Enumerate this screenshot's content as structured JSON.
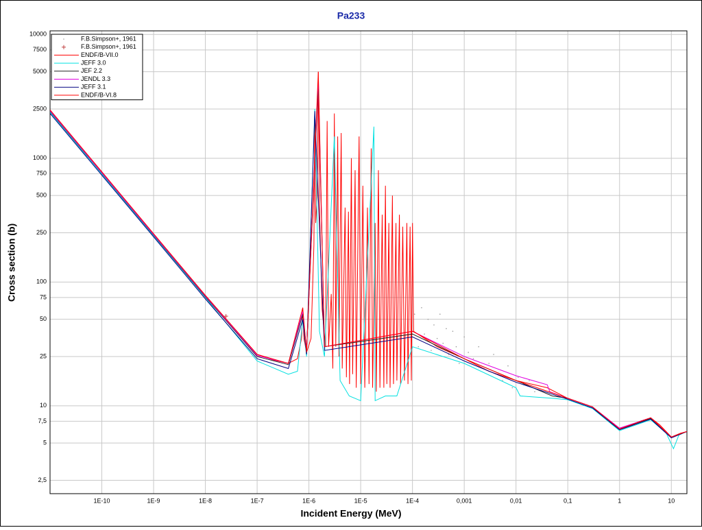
{
  "chart_data": {
    "type": "line",
    "title": "Pa233",
    "xlabel": "Incident Energy (MeV)",
    "ylabel": "Cross section (b)",
    "log_x": true,
    "log_y": true,
    "grid": true,
    "legend": "upper left",
    "xlim": [
      1e-11,
      20
    ],
    "ylim": [
      1.95,
      10700
    ],
    "xticks": [
      {
        "value": 1e-10,
        "label": "1E-10"
      },
      {
        "value": 1e-09,
        "label": "1E-9"
      },
      {
        "value": 1e-08,
        "label": "1E-8"
      },
      {
        "value": 1e-07,
        "label": "1E-7"
      },
      {
        "value": 1e-06,
        "label": "1E-6"
      },
      {
        "value": 1e-05,
        "label": "1E-5"
      },
      {
        "value": 0.0001,
        "label": "1E-4"
      },
      {
        "value": 0.001,
        "label": "0,001"
      },
      {
        "value": 0.01,
        "label": "0,01"
      },
      {
        "value": 0.1,
        "label": "0,1"
      },
      1,
      10
    ],
    "yticks": [
      {
        "value": 2.5,
        "label": "2,5"
      },
      5,
      {
        "value": 7.5,
        "label": "7,5"
      },
      10,
      25,
      50,
      75,
      100,
      250,
      500,
      750,
      1000,
      2500,
      5000,
      7500,
      10000
    ],
    "series": [
      {
        "name": "F.B.Simpson+, 1961",
        "marker": "dot",
        "color": "#9a9a9a",
        "x": [
          0.00011,
          0.00013,
          0.00015,
          0.00017,
          0.0002,
          0.00023,
          0.00026,
          0.0003,
          0.00034,
          0.00039,
          0.00045,
          0.0005,
          0.0006,
          0.0007,
          0.0008,
          0.001,
          0.0012,
          0.0015,
          0.0019,
          0.0024,
          0.003,
          0.0037,
          0.0045,
          0.0055,
          0.007,
          0.0085,
          0.011,
          0.014,
          0.018,
          0.023
        ],
        "values": [
          55,
          30,
          62,
          38,
          50,
          28,
          45,
          35,
          55,
          32,
          42,
          26,
          40,
          30,
          22,
          36,
          27,
          24,
          30,
          20,
          22,
          26,
          18,
          16,
          21,
          14,
          17,
          15,
          16,
          13
        ]
      },
      {
        "name": "F.B.Simpson+, 1961",
        "marker": "plus",
        "color": "#c04040",
        "x": [
          2.5e-08
        ],
        "values": [
          53
        ]
      },
      {
        "name": "ENDF/B-VII.0",
        "color": "#ff0000",
        "x": [
          1e-11,
          1e-10,
          1e-09,
          1e-08,
          1e-07,
          2e-07,
          4e-07,
          6e-07,
          7.2e-07,
          7.6e-07,
          8e-07,
          9e-07,
          1.1e-06,
          1.25e-06,
          1.3e-06,
          1.35e-06,
          1.45e-06,
          1.52e-06,
          1.6e-06,
          1.8e-06,
          2.1e-06,
          2.25e-06,
          2.4e-06,
          2.7e-06,
          2.9e-06,
          3.1e-06,
          3.3e-06,
          3.6e-06,
          3.8e-06,
          4.2e-06,
          4.4e-06,
          5e-06,
          5.3e-06,
          5.8e-06,
          6.1e-06,
          6.6e-06,
          7e-06,
          7.8e-06,
          8.2e-06,
          9.3e-06,
          1e-05,
          1.1e-05,
          1.2e-05,
          1.35e-05,
          1.45e-05,
          1.6e-05,
          1.7e-05,
          1.9e-05,
          2e-05,
          2.2e-05,
          2.35e-05,
          2.6e-05,
          2.8e-05,
          3e-05,
          3.2e-05,
          3.5e-05,
          3.7e-05,
          4.1e-05,
          4.3e-05,
          4.8e-05,
          5e-05,
          5.6e-05,
          5.9e-05,
          6.5e-05,
          7e-05,
          7.8e-05,
          8.2e-05,
          9e-05,
          9.5e-05,
          0.0001,
          0.000105,
          0.0003,
          0.001,
          0.003,
          0.01,
          0.04,
          0.1,
          0.3,
          0.6,
          1,
          1.5,
          2.5,
          4,
          6,
          10,
          15,
          20
        ],
        "values": [
          2450,
          775,
          245,
          78,
          26,
          23.5,
          22,
          24,
          35,
          62,
          35,
          27,
          35,
          200,
          2300,
          300,
          500,
          5000,
          400,
          60,
          30,
          2000,
          30,
          80,
          20,
          2300,
          30,
          1500,
          25,
          1600,
          20,
          400,
          17,
          370,
          15,
          1000,
          18,
          800,
          14,
          1500,
          15,
          600,
          14,
          400,
          15,
          1200,
          14,
          300,
          13,
          800,
          14,
          350,
          14,
          600,
          15,
          300,
          14,
          500,
          15,
          300,
          16,
          350,
          15,
          280,
          16,
          300,
          15,
          280,
          16,
          300,
          40,
          30,
          24,
          19,
          16,
          14,
          11.5,
          9.8,
          7.5,
          6.5,
          6.8,
          7.5,
          8,
          7,
          5.6,
          6,
          6.2
        ]
      },
      {
        "name": "JEFF 3.0",
        "color": "#00e0e0",
        "x": [
          1e-11,
          1e-10,
          1e-09,
          1e-08,
          1e-07,
          4e-07,
          6e-07,
          7.6e-07,
          9e-07,
          1.3e-06,
          1.6e-06,
          2e-06,
          3.1e-06,
          4e-06,
          6e-06,
          1e-05,
          1.8e-05,
          1.9e-05,
          3e-05,
          5e-05,
          0.0001,
          0.001,
          0.01,
          0.012,
          0.05,
          0.1,
          0.3,
          1,
          4,
          8,
          11,
          14,
          20
        ],
        "values": [
          2350,
          745,
          236,
          75,
          23,
          18,
          19,
          50,
          25,
          2500,
          40,
          25,
          1500,
          16,
          12,
          11,
          1800,
          11,
          12,
          12,
          30,
          22,
          14,
          12,
          11.5,
          11.2,
          9.5,
          6.3,
          7.7,
          6,
          4.5,
          5.8,
          6.2
        ]
      },
      {
        "name": "JEF 2.2",
        "color": "#202020",
        "x": [
          1e-11,
          1e-10,
          1e-09,
          1e-08,
          1e-07,
          4e-07,
          7.6e-07,
          9e-07,
          1.52e-06,
          2e-06,
          0.0001,
          0.001,
          0.01,
          0.05,
          0.1,
          0.3,
          1,
          4,
          10,
          20
        ],
        "values": [
          2400,
          760,
          240,
          76,
          25,
          21.5,
          55,
          28,
          4000,
          30,
          38,
          24,
          16,
          12,
          11.5,
          9.8,
          6.5,
          7.9,
          5.6,
          6.2
        ]
      },
      {
        "name": "JENDL 3.3",
        "color": "#e000e0",
        "x": [
          1e-11,
          1e-10,
          1e-09,
          1e-08,
          1e-07,
          4e-07,
          7.6e-07,
          9e-07,
          1.52e-06,
          2e-06,
          0.0001,
          0.001,
          0.01,
          0.04,
          0.045,
          0.1,
          0.3,
          1,
          4,
          10,
          20
        ],
        "values": [
          2420,
          765,
          242,
          77,
          25.5,
          22,
          58,
          28,
          4500,
          30,
          40,
          25,
          17.5,
          14.8,
          13,
          11.5,
          9.8,
          6.6,
          8,
          5.6,
          6.2
        ]
      },
      {
        "name": "JEFF 3.1",
        "color": "#000080",
        "x": [
          1e-11,
          1e-10,
          1e-09,
          1e-08,
          1e-07,
          4e-07,
          7.6e-07,
          9e-07,
          1.3e-06,
          2e-06,
          0.0001,
          0.001,
          0.01,
          0.1,
          0.3,
          1,
          4,
          10,
          20
        ],
        "values": [
          2300,
          730,
          232,
          73,
          24,
          20,
          50,
          26,
          2400,
          28,
          36,
          23,
          15.5,
          11.3,
          9.6,
          6.4,
          7.8,
          5.5,
          6.2
        ]
      },
      {
        "name": "ENDF/B-VI.8",
        "color": "#ff0000",
        "x": [
          1e-11,
          1e-10,
          1e-09,
          1e-08,
          1e-07,
          4e-07,
          7.6e-07,
          9e-07,
          1.52e-06,
          2e-06,
          0.0001,
          0.001,
          0.01,
          0.1,
          0.3,
          1,
          4,
          10,
          20
        ],
        "values": [
          2460,
          778,
          246,
          78,
          26,
          22,
          62,
          27,
          5000,
          30,
          40,
          24,
          16,
          11.5,
          9.8,
          6.5,
          8,
          5.6,
          6.2
        ]
      }
    ]
  }
}
